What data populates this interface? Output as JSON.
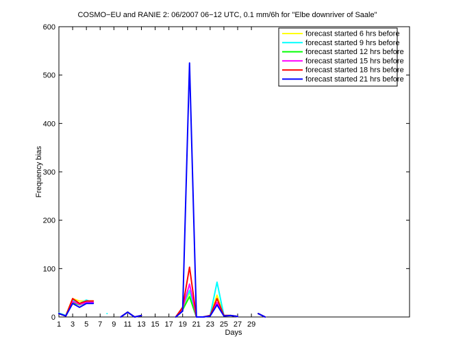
{
  "chart_data": {
    "type": "line",
    "title": "COSMO−EU and RANIE 2: 06/2007 06−12 UTC, 0.1 mm/6h for \"Elbe downriver of Saale\"",
    "x_label": "Days",
    "y_label": "Frequency bias",
    "x": [
      1,
      2,
      3,
      4,
      5,
      6,
      7,
      8,
      9,
      10,
      11,
      12,
      13,
      14,
      15,
      16,
      17,
      18,
      19,
      20,
      21,
      22,
      23,
      24,
      25,
      26,
      27,
      28,
      29,
      30,
      31
    ],
    "xlim": [
      1,
      52
    ],
    "xticks": [
      1,
      3,
      5,
      7,
      9,
      11,
      13,
      15,
      17,
      19,
      21,
      23,
      25,
      27,
      29
    ],
    "ylim": [
      0,
      600
    ],
    "yticks": [
      0,
      100,
      200,
      300,
      400,
      500,
      600
    ],
    "legend": "upper right",
    "series": [
      {
        "name": "forecast started 6 hrs before",
        "color": "#ffff00",
        "values": [
          8,
          3,
          38,
          33,
          33,
          33,
          null,
          null,
          null,
          0,
          10,
          0,
          3,
          null,
          null,
          null,
          null,
          0,
          20,
          50,
          0,
          0,
          3,
          45,
          3,
          3,
          1,
          null,
          null,
          7,
          0
        ]
      },
      {
        "name": "forecast started 9 hrs before",
        "color": "#00ffff",
        "values": [
          8,
          3,
          35,
          28,
          35,
          30,
          null,
          7,
          null,
          0,
          10,
          0,
          3,
          null,
          null,
          null,
          null,
          0,
          20,
          55,
          0,
          0,
          3,
          72,
          3,
          3,
          1,
          null,
          null,
          7,
          0
        ]
      },
      {
        "name": "forecast started 12 hrs before",
        "color": "#00ff00",
        "values": [
          7,
          2,
          30,
          25,
          30,
          30,
          null,
          null,
          null,
          0,
          10,
          0,
          3,
          null,
          null,
          null,
          null,
          0,
          15,
          42,
          0,
          0,
          3,
          28,
          3,
          3,
          1,
          null,
          null,
          7,
          0
        ]
      },
      {
        "name": "forecast started 15 hrs before",
        "color": "#ff00ff",
        "values": [
          7,
          2,
          32,
          26,
          30,
          30,
          null,
          null,
          null,
          0,
          10,
          0,
          3,
          null,
          null,
          null,
          null,
          0,
          18,
          68,
          0,
          0,
          3,
          30,
          3,
          3,
          1,
          null,
          null,
          7,
          0
        ]
      },
      {
        "name": "forecast started 18 hrs before",
        "color": "#ff0000",
        "values": [
          7,
          2,
          38,
          28,
          33,
          33,
          null,
          null,
          null,
          0,
          10,
          0,
          3,
          null,
          null,
          null,
          null,
          0,
          20,
          103,
          0,
          0,
          3,
          38,
          3,
          3,
          1,
          null,
          null,
          7,
          0
        ]
      },
      {
        "name": "forecast started 21 hrs before",
        "color": "#0000ff",
        "values": [
          7,
          2,
          28,
          20,
          28,
          28,
          null,
          null,
          null,
          0,
          10,
          0,
          3,
          null,
          null,
          null,
          null,
          0,
          12,
          525,
          0,
          0,
          2,
          25,
          2,
          3,
          1,
          null,
          null,
          7,
          0
        ]
      }
    ]
  }
}
